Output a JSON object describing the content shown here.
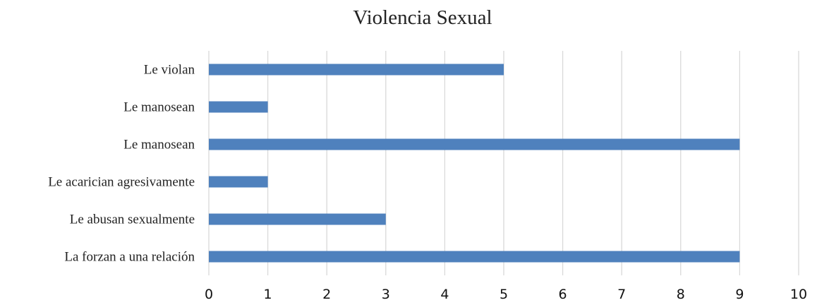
{
  "chart_data": {
    "type": "bar",
    "orientation": "horizontal",
    "title": "Violencia Sexual",
    "xlabel": "",
    "ylabel": "",
    "categories": [
      "Le violan",
      "Le manosean",
      "Le manosean",
      "Le acarician agresivamente",
      "Le abusan sexualmente",
      "La forzan a una relación"
    ],
    "values": [
      5,
      1,
      9,
      1,
      3,
      9
    ],
    "xlim": [
      0,
      10
    ],
    "xticks": [
      "0",
      "1",
      "2",
      "3",
      "4",
      "5",
      "6",
      "7",
      "8",
      "9",
      "10"
    ],
    "grid": "vertical",
    "legend": "none",
    "bar_color": "#4f81bd",
    "grid_color": "#d9d9d9"
  }
}
